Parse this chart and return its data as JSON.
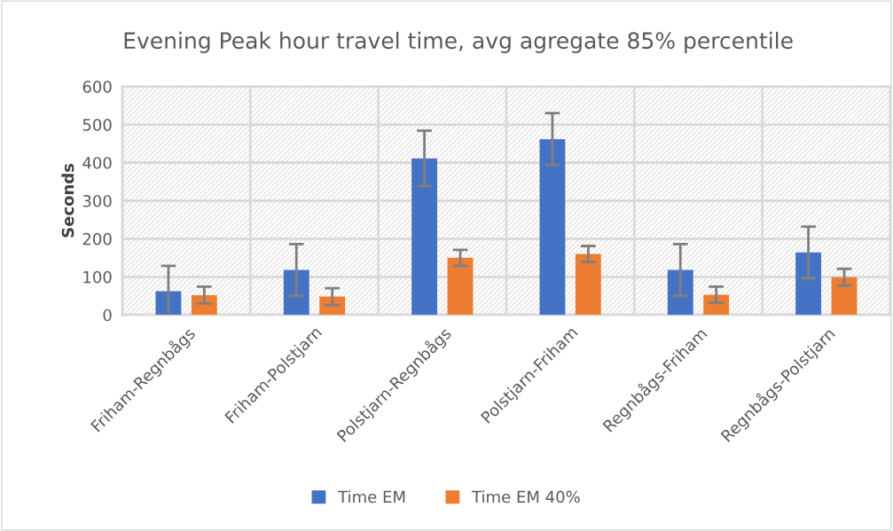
{
  "chart_data": {
    "type": "bar",
    "title": "Evening Peak hour travel time, avg agregate 85% percentile",
    "ylabel": "Seconds",
    "categories": [
      "Friham-Regnbågs",
      "Friham-Polstjarn",
      "Polstjarn-Regnbågs",
      "Polstjarn-Friham",
      "Regnbågs-Friham",
      "Regnbågs-Polstjarn"
    ],
    "series": [
      {
        "name": "Time EM",
        "color": "#4472c4",
        "values": [
          62,
          118,
          411,
          462,
          118,
          164
        ],
        "errors": [
          67,
          68,
          73,
          68,
          68,
          68
        ]
      },
      {
        "name": "Time EM 40%",
        "color": "#ed7d31",
        "values": [
          52,
          48,
          150,
          160,
          53,
          99
        ],
        "errors": [
          22,
          22,
          21,
          21,
          21,
          22
        ]
      }
    ],
    "ylim": [
      0,
      600
    ],
    "yticks": [
      0,
      100,
      200,
      300,
      400,
      500,
      600
    ],
    "grid": true,
    "legend": "bottom"
  }
}
